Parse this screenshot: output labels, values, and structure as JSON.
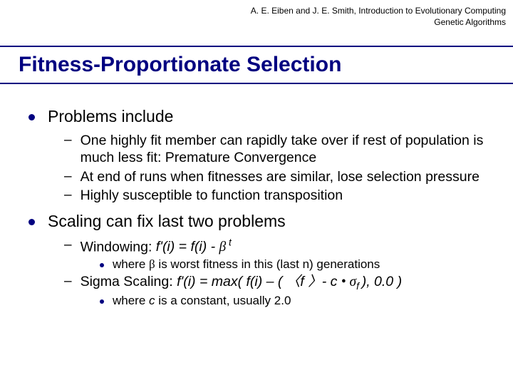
{
  "header": {
    "line1": "A. E. Eiben and J. E. Smith, Introduction to Evolutionary Computing",
    "line2": "Genetic Algorithms"
  },
  "title": "Fitness-Proportionate Selection",
  "colors": {
    "accent": "#000080",
    "text": "#000000",
    "background": "#ffffff"
  },
  "bullets": {
    "b1": "Problems include",
    "b1_1": "One highly fit member can rapidly take over if rest of population is much less fit: Premature Convergence",
    "b1_2": "At end of runs when fitnesses are similar, lose selection pressure",
    "b1_3": "Highly susceptible to function transposition",
    "b2": "Scaling can fix last two problems",
    "b2_1_prefix": "Windowing: ",
    "b2_1_formula": "f'(i) = f(i) - ",
    "b2_1_beta": "β",
    "b2_1_t": " t",
    "b2_1_1a": "where ",
    "b2_1_1b": "β",
    "b2_1_1c": " is worst fitness in this (last n) generations",
    "b2_2_prefix": "Sigma Scaling: ",
    "b2_2_f1": "f'(i) = max( f(i) – ( ",
    "b2_2_lang": "〈",
    "b2_2_f": "f ",
    "b2_2_rang": "〉",
    "b2_2_mid": "- c ",
    "b2_2_dot": "•",
    "b2_2_sig": " σ",
    "b2_2_sub": "f ",
    "b2_2_end": "), 0.0 )",
    "b2_2_1a": "where ",
    "b2_2_1b": "c",
    "b2_2_1c": " is a constant, usually 2.0"
  }
}
